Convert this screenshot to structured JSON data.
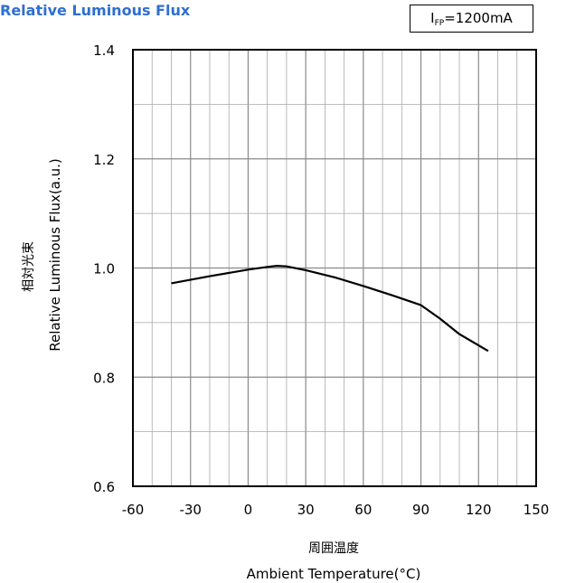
{
  "title": "Relative Luminous Flux",
  "condition": {
    "symbol": "I",
    "subscript": "FP",
    "value": "=1200mA"
  },
  "chart_data": {
    "type": "line",
    "title": "Relative Luminous Flux",
    "xlabel_jp": "周囲温度",
    "xlabel": "Ambient Temperature(°C)",
    "ylabel_jp": "相対光束",
    "ylabel": "Relative Luminous Flux(a.u.)",
    "xlim": [
      -60,
      150
    ],
    "ylim": [
      0.6,
      1.4
    ],
    "xticks": [
      -60,
      -30,
      0,
      30,
      60,
      90,
      120,
      150
    ],
    "xtick_labels": [
      "-60",
      "-30",
      "0",
      "30",
      "60",
      "90",
      "120",
      "150"
    ],
    "yticks": [
      0.6,
      0.8,
      1.0,
      1.2,
      1.4
    ],
    "ytick_labels": [
      "0.6",
      "0.8",
      "1.0",
      "1.2",
      "1.4"
    ],
    "grid": true,
    "series": [
      {
        "color": "#000000",
        "x": [
          -40,
          -20,
          0,
          10,
          15,
          20,
          30,
          45,
          60,
          75,
          90,
          100,
          110,
          125
        ],
        "y": [
          0.972,
          0.985,
          0.997,
          1.002,
          1.004,
          1.003,
          0.996,
          0.983,
          0.967,
          0.95,
          0.932,
          0.907,
          0.879,
          0.848
        ]
      }
    ]
  }
}
